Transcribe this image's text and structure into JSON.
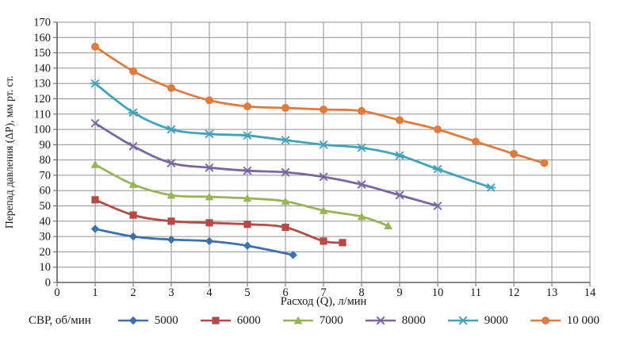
{
  "chart_data": {
    "type": "line",
    "title": "",
    "xlabel": "Расход (Q), л/мин",
    "ylabel": "Перепад давления (ΔP), мм рт. ст.",
    "legend_title": "СВР, об/мин",
    "legend_position": "bottom",
    "grid": true,
    "xlim": [
      0,
      14
    ],
    "ylim": [
      0,
      170
    ],
    "x_tick_step": 1,
    "y_tick_step": 10,
    "grid_color": "#909090",
    "axis_color": "#606060",
    "tick_label_color": "#161616",
    "series": [
      {
        "name": "5000",
        "color": "#3e6fae",
        "marker": "diamond",
        "x": [
          1,
          2,
          3,
          4,
          5,
          6.2
        ],
        "y": [
          35,
          30,
          28,
          27,
          24,
          18
        ]
      },
      {
        "name": "6000",
        "color": "#b84a46",
        "marker": "square",
        "x": [
          1,
          2,
          3,
          4,
          5,
          6,
          7,
          7.5
        ],
        "y": [
          54,
          44,
          40,
          39,
          38,
          36,
          27,
          26
        ]
      },
      {
        "name": "7000",
        "color": "#97b456",
        "marker": "triangle",
        "x": [
          1,
          2,
          3,
          4,
          5,
          6,
          7,
          8,
          8.7
        ],
        "y": [
          77,
          64,
          57,
          56,
          55,
          53,
          47,
          43,
          37
        ]
      },
      {
        "name": "8000",
        "color": "#7a66a2",
        "marker": "x",
        "x": [
          1,
          2,
          3,
          4,
          5,
          6,
          7,
          8,
          9,
          10
        ],
        "y": [
          104,
          89,
          78,
          75,
          73,
          72,
          69,
          64,
          57,
          50
        ]
      },
      {
        "name": "9000",
        "color": "#41a3bc",
        "marker": "star",
        "x": [
          1,
          2,
          3,
          4,
          5,
          6,
          7,
          8,
          9,
          10,
          11.4
        ],
        "y": [
          130,
          111,
          100,
          97,
          96,
          93,
          90,
          88,
          83,
          74,
          62
        ]
      },
      {
        "name": "10 000",
        "color": "#e07b3d",
        "marker": "circle",
        "x": [
          1,
          2,
          3,
          4,
          5,
          6,
          7,
          8,
          9,
          10,
          11,
          12,
          12.8
        ],
        "y": [
          154,
          138,
          127,
          119,
          115,
          114,
          113,
          112,
          106,
          100,
          92,
          84,
          78
        ]
      }
    ]
  }
}
